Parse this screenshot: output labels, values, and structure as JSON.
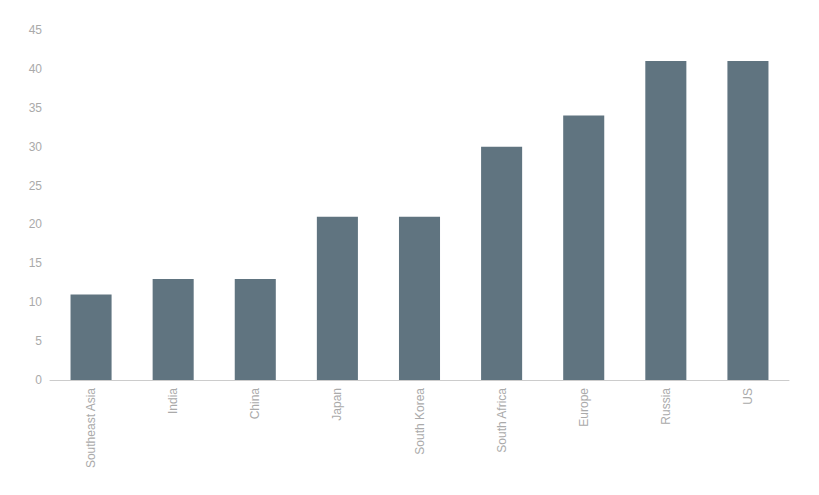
{
  "chart_data": {
    "type": "bar",
    "categories": [
      "Southeast Asia",
      "India",
      "China",
      "Japan",
      "South Korea",
      "South Africa",
      "Europe",
      "Russia",
      "US"
    ],
    "values": [
      11,
      13,
      13,
      21,
      21,
      30,
      34,
      41,
      41
    ],
    "color": "#607480",
    "ylim": [
      0,
      45
    ],
    "yticks": [
      0,
      5,
      10,
      15,
      20,
      25,
      30,
      35,
      40,
      45
    ],
    "grid": false
  }
}
